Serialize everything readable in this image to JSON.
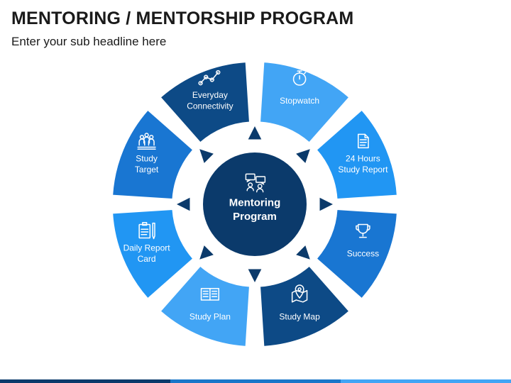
{
  "title": "MENTORING / MENTORSHIP PROGRAM",
  "subtitle": "Enter your sub headline here",
  "center": {
    "lines": [
      "Mentoring",
      "Program"
    ],
    "icon": "mentor-chat-icon"
  },
  "segments": [
    {
      "lines": [
        "Stopwatch"
      ],
      "icon": "stopwatch-icon",
      "color": "#42a5f5"
    },
    {
      "lines": [
        "24 Hours",
        "Study Report"
      ],
      "icon": "report-document-icon",
      "color": "#2196f3"
    },
    {
      "lines": [
        "Success"
      ],
      "icon": "trophy-icon",
      "color": "#1976d2"
    },
    {
      "lines": [
        "Study Map"
      ],
      "icon": "map-pin-icon",
      "color": "#0d4a86"
    },
    {
      "lines": [
        "Study Plan"
      ],
      "icon": "book-icon",
      "color": "#42a5f5"
    },
    {
      "lines": [
        "Daily Report",
        "Card"
      ],
      "icon": "clipboard-icon",
      "color": "#2196f3"
    },
    {
      "lines": [
        "Study",
        "Target"
      ],
      "icon": "group-target-icon",
      "color": "#1976d2"
    },
    {
      "lines": [
        "Everyday",
        "Connectivity"
      ],
      "icon": "connectivity-graph-icon",
      "color": "#0d4a86"
    }
  ],
  "colors": {
    "center": "#0b3a6b",
    "triangle": "#0b3a6b",
    "text": "#ffffff"
  }
}
